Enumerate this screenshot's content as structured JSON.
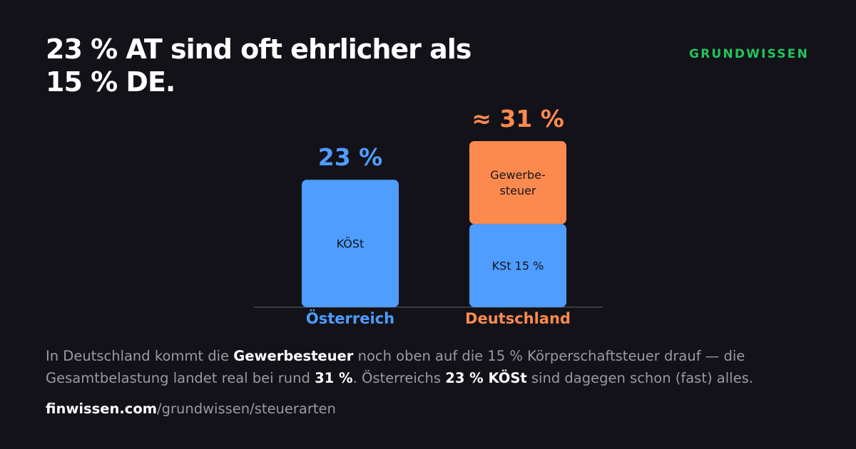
{
  "headline": {
    "line1": "23 % AT sind oft ehrlicher als",
    "line2": "15 % DE."
  },
  "brand": "GRUNDWISSEN",
  "colors": {
    "background": "#121218",
    "blue": "#4e9dff",
    "orange": "#fc8a4f",
    "green": "#21c55d",
    "muted": "#9a9aa3",
    "baseline": "#3a3a44"
  },
  "chart_data": {
    "type": "bar",
    "stacked": true,
    "unit": "%",
    "categories": [
      "Österreich",
      "Deutschland"
    ],
    "ylim": [
      0,
      31
    ],
    "bars": [
      {
        "category": "Österreich",
        "total": 23,
        "total_label": "23 %",
        "color": "#4e9dff",
        "segments": [
          {
            "label": "KÖSt",
            "value": 23,
            "color": "#4e9dff"
          }
        ]
      },
      {
        "category": "Deutschland",
        "total": 31,
        "total_label": "≈ 31 %",
        "color": "#fc8a4f",
        "segments": [
          {
            "label": "KSt 15 %",
            "value": 15,
            "color": "#4e9dff"
          },
          {
            "label": "Gewerbe-\nsteuer",
            "value": 16,
            "color": "#fc8a4f"
          }
        ]
      }
    ]
  },
  "caption": {
    "p1": "In Deutschland kommt die ",
    "b1": "Gewerbesteuer",
    "p2": " noch oben auf die 15 % Körperschaftsteuer drauf — die Gesamtbelastung landet real bei rund ",
    "b2": "31 %",
    "p3": ". Österreichs ",
    "b3": "23 % KÖSt",
    "p4": " sind dagegen schon (fast) alles."
  },
  "footer": {
    "domain": "finwissen.com",
    "path": "/grundwissen/steuerarten"
  }
}
